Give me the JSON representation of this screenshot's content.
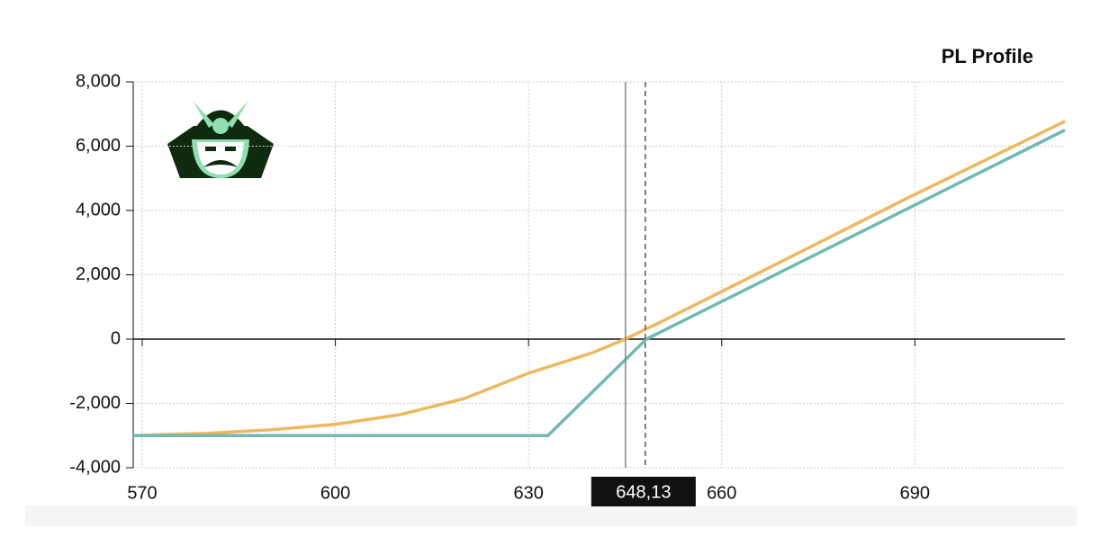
{
  "chart_data": {
    "type": "line",
    "title": "PL Profile",
    "xlim": [
      568.6,
      713.3
    ],
    "ylim": [
      -4000,
      8000
    ],
    "xticks": [
      570,
      600,
      630,
      660,
      690
    ],
    "yticks": [
      {
        "value": -4000,
        "label": "-4,000"
      },
      {
        "value": -2000,
        "label": "-2,000"
      },
      0,
      {
        "value": 2000,
        "label": "2,000"
      },
      {
        "value": 4000,
        "label": "4,000"
      },
      {
        "value": 6000,
        "label": "6,000"
      },
      {
        "value": 8000,
        "label": "8,000"
      }
    ],
    "grid": true,
    "series": [
      {
        "color": "#edb85f",
        "x": [
          568.6,
          580,
          590,
          600,
          610,
          620,
          630,
          640,
          645,
          650,
          660,
          690,
          713.3
        ],
        "values": [
          -3000,
          -2930,
          -2820,
          -2650,
          -2350,
          -1850,
          -1060,
          -420,
          0,
          480,
          1480,
          4500,
          6770
        ]
      },
      {
        "color": "#72b8b3",
        "x": [
          568.6,
          633,
          648.3,
          713.3
        ],
        "values": [
          -3000,
          -3000,
          0,
          6500
        ]
      }
    ],
    "vlines": [
      {
        "value": 645.05,
        "style": "solid"
      },
      {
        "value": 648.13,
        "style": "dashed",
        "label": "648,13"
      }
    ]
  }
}
